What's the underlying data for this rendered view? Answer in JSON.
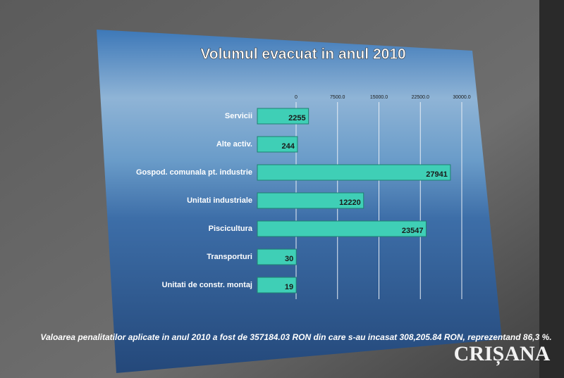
{
  "chart_data": {
    "type": "hbar",
    "title": "Volumul evacuat in anul 2010",
    "categories": [
      "Servicii",
      "Alte activ.",
      "Gospod. comunala pt. industrie",
      "Unitati industriale",
      "Piscicultura",
      "Transporturi",
      "Unitati de constr. montaj"
    ],
    "values": [
      2255,
      244,
      27941,
      12220,
      23547,
      30,
      19
    ],
    "color": "#3fcfb6",
    "xlim": [
      0,
      30000
    ],
    "xticks": [
      0,
      {
        "value": 7500,
        "label": "7500.0"
      },
      {
        "value": 15000,
        "label": "15000.0"
      },
      {
        "value": 22500,
        "label": "22500.0"
      },
      {
        "value": 30000,
        "label": "30000.0"
      }
    ],
    "grid": true,
    "note": "Valoarea penalitatilor aplicate in anul 2010 a fost de 357184.03 RON din care s-au incasat 308,205.84  RON, reprezentand 86,3 %."
  },
  "watermark": "CRIȘANA"
}
